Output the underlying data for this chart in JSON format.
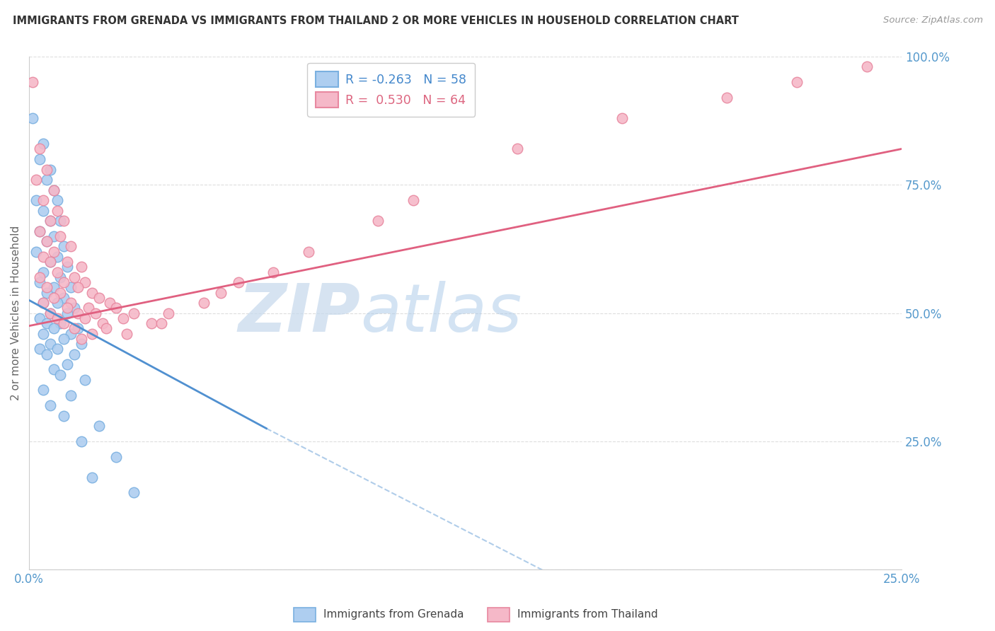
{
  "title": "IMMIGRANTS FROM GRENADA VS IMMIGRANTS FROM THAILAND 2 OR MORE VEHICLES IN HOUSEHOLD CORRELATION CHART",
  "source": "Source: ZipAtlas.com",
  "ylabel": "2 or more Vehicles in Household",
  "x_min": 0.0,
  "x_max": 0.25,
  "y_min": 0.0,
  "y_max": 1.0,
  "x_ticks": [
    0.0,
    0.05,
    0.1,
    0.15,
    0.2,
    0.25
  ],
  "x_tick_labels": [
    "0.0%",
    "",
    "",
    "",
    "",
    "25.0%"
  ],
  "y_ticks": [
    0.0,
    0.25,
    0.5,
    0.75,
    1.0
  ],
  "y_tick_labels": [
    "",
    "25.0%",
    "50.0%",
    "75.0%",
    "100.0%"
  ],
  "grenada_R": -0.263,
  "grenada_N": 58,
  "thailand_R": 0.53,
  "thailand_N": 64,
  "grenada_color": "#aecef0",
  "thailand_color": "#f5b8c8",
  "grenada_edge_color": "#7ab0e0",
  "thailand_edge_color": "#e888a0",
  "grenada_line_color": "#5090d0",
  "thailand_line_color": "#e06080",
  "grenada_scatter": [
    [
      0.001,
      0.88
    ],
    [
      0.004,
      0.83
    ],
    [
      0.003,
      0.8
    ],
    [
      0.006,
      0.78
    ],
    [
      0.005,
      0.76
    ],
    [
      0.007,
      0.74
    ],
    [
      0.002,
      0.72
    ],
    [
      0.008,
      0.72
    ],
    [
      0.004,
      0.7
    ],
    [
      0.006,
      0.68
    ],
    [
      0.009,
      0.68
    ],
    [
      0.003,
      0.66
    ],
    [
      0.007,
      0.65
    ],
    [
      0.005,
      0.64
    ],
    [
      0.01,
      0.63
    ],
    [
      0.002,
      0.62
    ],
    [
      0.008,
      0.61
    ],
    [
      0.006,
      0.6
    ],
    [
      0.011,
      0.59
    ],
    [
      0.004,
      0.58
    ],
    [
      0.009,
      0.57
    ],
    [
      0.003,
      0.56
    ],
    [
      0.007,
      0.55
    ],
    [
      0.012,
      0.55
    ],
    [
      0.005,
      0.54
    ],
    [
      0.01,
      0.53
    ],
    [
      0.004,
      0.52
    ],
    [
      0.008,
      0.52
    ],
    [
      0.013,
      0.51
    ],
    [
      0.006,
      0.5
    ],
    [
      0.011,
      0.5
    ],
    [
      0.003,
      0.49
    ],
    [
      0.009,
      0.48
    ],
    [
      0.005,
      0.48
    ],
    [
      0.014,
      0.47
    ],
    [
      0.007,
      0.47
    ],
    [
      0.012,
      0.46
    ],
    [
      0.004,
      0.46
    ],
    [
      0.01,
      0.45
    ],
    [
      0.006,
      0.44
    ],
    [
      0.015,
      0.44
    ],
    [
      0.003,
      0.43
    ],
    [
      0.008,
      0.43
    ],
    [
      0.013,
      0.42
    ],
    [
      0.005,
      0.42
    ],
    [
      0.011,
      0.4
    ],
    [
      0.007,
      0.39
    ],
    [
      0.009,
      0.38
    ],
    [
      0.016,
      0.37
    ],
    [
      0.004,
      0.35
    ],
    [
      0.012,
      0.34
    ],
    [
      0.006,
      0.32
    ],
    [
      0.01,
      0.3
    ],
    [
      0.02,
      0.28
    ],
    [
      0.015,
      0.25
    ],
    [
      0.025,
      0.22
    ],
    [
      0.018,
      0.18
    ],
    [
      0.03,
      0.15
    ]
  ],
  "thailand_scatter": [
    [
      0.001,
      0.95
    ],
    [
      0.003,
      0.82
    ],
    [
      0.005,
      0.78
    ],
    [
      0.002,
      0.76
    ],
    [
      0.007,
      0.74
    ],
    [
      0.004,
      0.72
    ],
    [
      0.008,
      0.7
    ],
    [
      0.006,
      0.68
    ],
    [
      0.01,
      0.68
    ],
    [
      0.003,
      0.66
    ],
    [
      0.009,
      0.65
    ],
    [
      0.005,
      0.64
    ],
    [
      0.012,
      0.63
    ],
    [
      0.007,
      0.62
    ],
    [
      0.004,
      0.61
    ],
    [
      0.011,
      0.6
    ],
    [
      0.006,
      0.6
    ],
    [
      0.015,
      0.59
    ],
    [
      0.008,
      0.58
    ],
    [
      0.013,
      0.57
    ],
    [
      0.003,
      0.57
    ],
    [
      0.01,
      0.56
    ],
    [
      0.016,
      0.56
    ],
    [
      0.005,
      0.55
    ],
    [
      0.014,
      0.55
    ],
    [
      0.009,
      0.54
    ],
    [
      0.018,
      0.54
    ],
    [
      0.007,
      0.53
    ],
    [
      0.012,
      0.52
    ],
    [
      0.02,
      0.53
    ],
    [
      0.004,
      0.52
    ],
    [
      0.017,
      0.51
    ],
    [
      0.011,
      0.51
    ],
    [
      0.023,
      0.52
    ],
    [
      0.006,
      0.5
    ],
    [
      0.019,
      0.5
    ],
    [
      0.014,
      0.5
    ],
    [
      0.008,
      0.49
    ],
    [
      0.025,
      0.51
    ],
    [
      0.016,
      0.49
    ],
    [
      0.021,
      0.48
    ],
    [
      0.01,
      0.48
    ],
    [
      0.03,
      0.5
    ],
    [
      0.013,
      0.47
    ],
    [
      0.027,
      0.49
    ],
    [
      0.018,
      0.46
    ],
    [
      0.035,
      0.48
    ],
    [
      0.022,
      0.47
    ],
    [
      0.015,
      0.45
    ],
    [
      0.04,
      0.5
    ],
    [
      0.028,
      0.46
    ],
    [
      0.05,
      0.52
    ],
    [
      0.06,
      0.56
    ],
    [
      0.08,
      0.62
    ],
    [
      0.11,
      0.72
    ],
    [
      0.14,
      0.82
    ],
    [
      0.17,
      0.88
    ],
    [
      0.2,
      0.92
    ],
    [
      0.22,
      0.95
    ],
    [
      0.24,
      0.98
    ],
    [
      0.038,
      0.48
    ],
    [
      0.055,
      0.54
    ],
    [
      0.07,
      0.58
    ],
    [
      0.1,
      0.68
    ]
  ],
  "grenada_trendline_solid": [
    [
      0.0,
      0.525
    ],
    [
      0.068,
      0.275
    ]
  ],
  "grenada_trendline_dashed": [
    [
      0.068,
      0.275
    ],
    [
      0.25,
      -0.36
    ]
  ],
  "thailand_trendline": [
    [
      0.0,
      0.475
    ],
    [
      0.25,
      0.82
    ]
  ],
  "watermark_zip": "ZIP",
  "watermark_atlas": "atlas",
  "grid_color": "#dddddd",
  "background_color": "#ffffff"
}
